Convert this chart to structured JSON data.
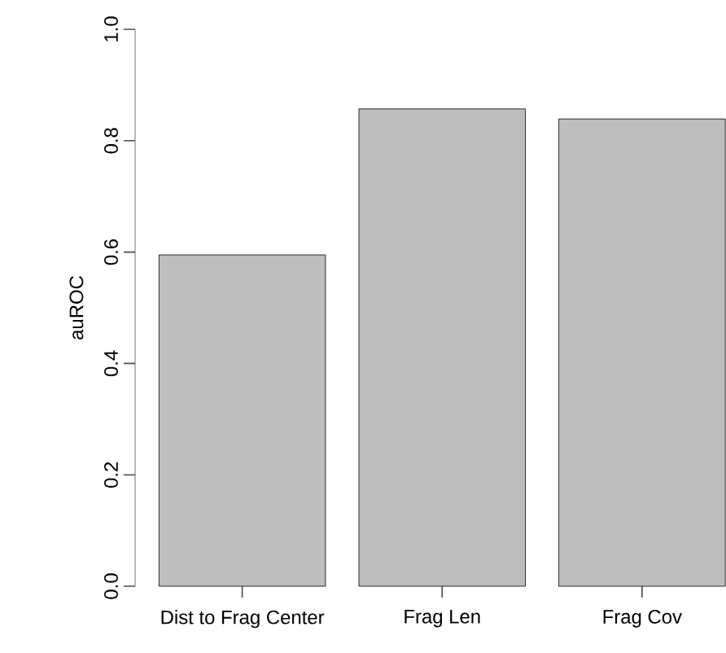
{
  "chart_data": {
    "type": "bar",
    "ylabel": "auROC",
    "categories": [
      "Dist to Frag Center",
      "Frag Len",
      "Frag Cov"
    ],
    "values": [
      0.595,
      0.857,
      0.839
    ],
    "color": "#bebebe",
    "ylim": [
      0,
      1
    ],
    "yticks": [
      {
        "value": 0,
        "label": "0.0"
      },
      {
        "value": 0.2,
        "label": "0.2"
      },
      {
        "value": 0.4,
        "label": "0.4"
      },
      {
        "value": 0.6,
        "label": "0.6"
      },
      {
        "value": 0.8,
        "label": "0.8"
      },
      {
        "value": 1,
        "label": "1.0"
      }
    ]
  }
}
